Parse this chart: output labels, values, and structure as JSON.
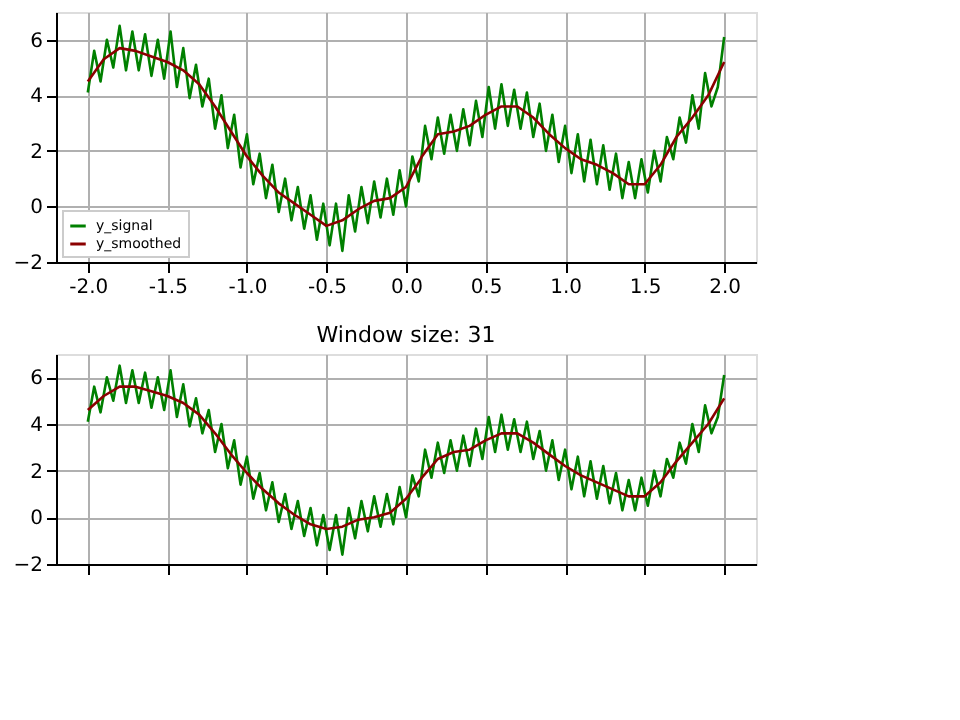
{
  "chart_data": [
    {
      "type": "line",
      "xlim": [
        -2.2,
        2.2
      ],
      "ylim": [
        -2,
        7
      ],
      "xticks": [
        {
          "value": -2,
          "label": "-2.0"
        },
        {
          "value": -1.5,
          "label": "-1.5"
        },
        {
          "value": -1,
          "label": "-1.0"
        },
        {
          "value": -0.5,
          "label": "-0.5"
        },
        {
          "value": 0,
          "label": "0.0"
        },
        {
          "value": 0.5,
          "label": "0.5"
        },
        {
          "value": 1,
          "label": "1.0"
        },
        {
          "value": 1.5,
          "label": "1.5"
        },
        {
          "value": 2,
          "label": "2.0"
        }
      ],
      "yticks": [
        -2,
        0,
        2,
        4,
        6
      ],
      "grid": true,
      "legend": "bottom left",
      "series": [
        {
          "name": "y_signal",
          "color": "#008000",
          "x": [
            -2.0,
            -1.96,
            -1.92,
            -1.88,
            -1.84,
            -1.8,
            -1.76,
            -1.72,
            -1.68,
            -1.64,
            -1.6,
            -1.56,
            -1.52,
            -1.48,
            -1.44,
            -1.4,
            -1.36,
            -1.32,
            -1.28,
            -1.24,
            -1.2,
            -1.16,
            -1.12,
            -1.08,
            -1.04,
            -1.0,
            -0.96,
            -0.92,
            -0.88,
            -0.84,
            -0.8,
            -0.76,
            -0.72,
            -0.68,
            -0.64,
            -0.6,
            -0.56,
            -0.52,
            -0.48,
            -0.44,
            -0.4,
            -0.36,
            -0.32,
            -0.28,
            -0.24,
            -0.2,
            -0.16,
            -0.12,
            -0.08,
            -0.04,
            0.0,
            0.04,
            0.08,
            0.12,
            0.16,
            0.2,
            0.24,
            0.28,
            0.32,
            0.36,
            0.4,
            0.44,
            0.48,
            0.52,
            0.56,
            0.6,
            0.64,
            0.68,
            0.72,
            0.76,
            0.8,
            0.84,
            0.88,
            0.92,
            0.96,
            1.0,
            1.04,
            1.08,
            1.12,
            1.16,
            1.2,
            1.24,
            1.28,
            1.32,
            1.36,
            1.4,
            1.44,
            1.48,
            1.52,
            1.56,
            1.6,
            1.64,
            1.68,
            1.72,
            1.76,
            1.8,
            1.84,
            1.88,
            1.92,
            1.96,
            2.0
          ],
          "values": [
            4.1,
            5.6,
            4.5,
            6.0,
            5.0,
            6.5,
            4.9,
            6.3,
            4.9,
            6.2,
            4.7,
            6.0,
            4.6,
            6.3,
            4.3,
            5.7,
            3.9,
            5.1,
            3.6,
            4.6,
            2.8,
            4.0,
            2.1,
            3.3,
            1.4,
            2.6,
            0.8,
            1.9,
            0.3,
            1.5,
            -0.2,
            1.0,
            -0.5,
            0.7,
            -0.8,
            0.4,
            -1.2,
            0.1,
            -1.4,
            0.1,
            -1.6,
            0.4,
            -0.9,
            0.7,
            -0.6,
            0.9,
            -0.4,
            1.0,
            -0.3,
            1.3,
            0.0,
            1.8,
            0.9,
            2.9,
            1.7,
            3.2,
            1.9,
            3.3,
            2.0,
            3.5,
            2.2,
            3.8,
            2.5,
            4.3,
            2.8,
            4.4,
            2.9,
            4.2,
            2.8,
            4.1,
            2.5,
            3.7,
            2.0,
            3.3,
            1.6,
            2.9,
            1.2,
            2.6,
            0.9,
            2.4,
            0.8,
            2.2,
            0.6,
            1.9,
            0.3,
            1.6,
            0.3,
            1.7,
            0.5,
            2.0,
            0.9,
            2.5,
            1.7,
            3.2,
            2.3,
            4.0,
            2.8,
            4.8,
            3.6,
            4.3,
            6.1
          ]
        },
        {
          "name": "y_smoothed",
          "color": "#8b0000",
          "x": [
            -2.0,
            -1.9,
            -1.8,
            -1.7,
            -1.6,
            -1.5,
            -1.4,
            -1.3,
            -1.2,
            -1.1,
            -1.0,
            -0.9,
            -0.8,
            -0.7,
            -0.6,
            -0.5,
            -0.4,
            -0.3,
            -0.2,
            -0.1,
            0.0,
            0.1,
            0.2,
            0.3,
            0.4,
            0.5,
            0.6,
            0.7,
            0.8,
            0.9,
            1.0,
            1.1,
            1.2,
            1.3,
            1.4,
            1.5,
            1.6,
            1.7,
            1.8,
            1.9,
            2.0
          ],
          "values": [
            4.5,
            5.3,
            5.7,
            5.6,
            5.4,
            5.2,
            4.9,
            4.4,
            3.6,
            2.7,
            1.8,
            1.1,
            0.5,
            0.1,
            -0.3,
            -0.7,
            -0.5,
            -0.1,
            0.2,
            0.3,
            0.7,
            1.8,
            2.6,
            2.7,
            2.9,
            3.3,
            3.6,
            3.6,
            3.2,
            2.6,
            2.1,
            1.7,
            1.5,
            1.2,
            0.8,
            0.8,
            1.5,
            2.5,
            3.2,
            4.0,
            5.2
          ]
        }
      ]
    },
    {
      "type": "line",
      "title": "Window size: 31",
      "xlim": [
        -2.2,
        2.2
      ],
      "ylim": [
        -2,
        7
      ],
      "xticks": [
        -2,
        -1.5,
        -1,
        -0.5,
        0,
        0.5,
        1,
        1.5,
        2
      ],
      "yticks": [
        -2,
        0,
        2,
        4,
        6
      ],
      "grid": true,
      "tick_labels": "y",
      "series": [
        {
          "color": "#008000",
          "x": [
            -2.0,
            -1.96,
            -1.92,
            -1.88,
            -1.84,
            -1.8,
            -1.76,
            -1.72,
            -1.68,
            -1.64,
            -1.6,
            -1.56,
            -1.52,
            -1.48,
            -1.44,
            -1.4,
            -1.36,
            -1.32,
            -1.28,
            -1.24,
            -1.2,
            -1.16,
            -1.12,
            -1.08,
            -1.04,
            -1.0,
            -0.96,
            -0.92,
            -0.88,
            -0.84,
            -0.8,
            -0.76,
            -0.72,
            -0.68,
            -0.64,
            -0.6,
            -0.56,
            -0.52,
            -0.48,
            -0.44,
            -0.4,
            -0.36,
            -0.32,
            -0.28,
            -0.24,
            -0.2,
            -0.16,
            -0.12,
            -0.08,
            -0.04,
            0.0,
            0.04,
            0.08,
            0.12,
            0.16,
            0.2,
            0.24,
            0.28,
            0.32,
            0.36,
            0.4,
            0.44,
            0.48,
            0.52,
            0.56,
            0.6,
            0.64,
            0.68,
            0.72,
            0.76,
            0.8,
            0.84,
            0.88,
            0.92,
            0.96,
            1.0,
            1.04,
            1.08,
            1.12,
            1.16,
            1.2,
            1.24,
            1.28,
            1.32,
            1.36,
            1.4,
            1.44,
            1.48,
            1.52,
            1.56,
            1.6,
            1.64,
            1.68,
            1.72,
            1.76,
            1.8,
            1.84,
            1.88,
            1.92,
            1.96,
            2.0
          ],
          "values": [
            4.1,
            5.6,
            4.5,
            6.0,
            5.0,
            6.5,
            4.9,
            6.3,
            4.9,
            6.2,
            4.7,
            6.0,
            4.6,
            6.3,
            4.3,
            5.7,
            3.9,
            5.1,
            3.6,
            4.6,
            2.8,
            4.0,
            2.1,
            3.3,
            1.4,
            2.6,
            0.8,
            1.9,
            0.3,
            1.5,
            -0.2,
            1.0,
            -0.5,
            0.7,
            -0.8,
            0.4,
            -1.2,
            0.1,
            -1.4,
            0.1,
            -1.6,
            0.4,
            -0.9,
            0.7,
            -0.6,
            0.9,
            -0.4,
            1.0,
            -0.3,
            1.3,
            0.0,
            1.8,
            0.9,
            2.9,
            1.7,
            3.2,
            1.9,
            3.3,
            2.0,
            3.5,
            2.2,
            3.8,
            2.5,
            4.3,
            2.8,
            4.4,
            2.9,
            4.2,
            2.8,
            4.1,
            2.5,
            3.7,
            2.0,
            3.3,
            1.6,
            2.9,
            1.2,
            2.6,
            0.9,
            2.4,
            0.8,
            2.2,
            0.6,
            1.9,
            0.3,
            1.6,
            0.3,
            1.7,
            0.5,
            2.0,
            0.9,
            2.5,
            1.7,
            3.2,
            2.3,
            4.0,
            2.8,
            4.8,
            3.6,
            4.3,
            6.1
          ]
        },
        {
          "color": "#8b0000",
          "x": [
            -2.0,
            -1.9,
            -1.8,
            -1.7,
            -1.6,
            -1.5,
            -1.4,
            -1.3,
            -1.2,
            -1.1,
            -1.0,
            -0.9,
            -0.8,
            -0.7,
            -0.6,
            -0.5,
            -0.4,
            -0.3,
            -0.2,
            -0.1,
            0.0,
            0.1,
            0.2,
            0.3,
            0.4,
            0.5,
            0.6,
            0.7,
            0.8,
            0.9,
            1.0,
            1.1,
            1.2,
            1.3,
            1.4,
            1.5,
            1.6,
            1.7,
            1.8,
            1.9,
            2.0
          ],
          "values": [
            4.6,
            5.2,
            5.6,
            5.6,
            5.4,
            5.2,
            4.9,
            4.4,
            3.6,
            2.7,
            1.9,
            1.2,
            0.6,
            0.1,
            -0.3,
            -0.5,
            -0.4,
            -0.1,
            0.0,
            0.2,
            0.8,
            1.7,
            2.5,
            2.8,
            2.9,
            3.3,
            3.6,
            3.6,
            3.2,
            2.7,
            2.2,
            1.8,
            1.5,
            1.2,
            0.9,
            0.9,
            1.5,
            2.4,
            3.2,
            4.0,
            5.1
          ]
        }
      ]
    }
  ]
}
